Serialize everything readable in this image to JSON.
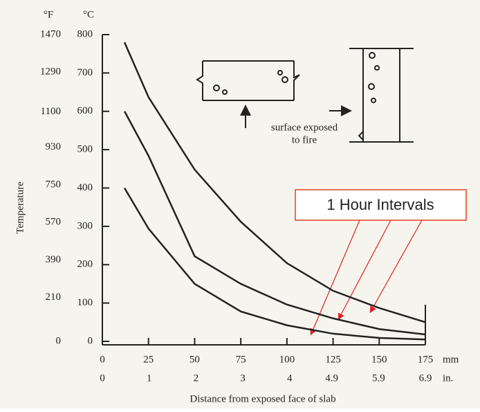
{
  "chart_data": {
    "type": "line",
    "y_label": "Temperature",
    "x_label": "Distance from exposed face of slab",
    "y_unit": "°C",
    "y2_unit": "°F",
    "x_unit": "mm",
    "x2_unit": "in.",
    "annotation": "1 Hour Intervals",
    "figure_text": [
      "surface exposed",
      "to fire"
    ],
    "x": [
      12,
      25,
      50,
      75,
      100,
      125,
      150,
      175
    ],
    "series": [
      {
        "color": "#222",
        "values": [
          780,
          637,
          448,
          312,
          204,
          132,
          87,
          50
        ]
      },
      {
        "color": "#222",
        "values": [
          600,
          484,
          222,
          150,
          96,
          60,
          32,
          18
        ]
      },
      {
        "color": "#222",
        "values": [
          400,
          294,
          150,
          78,
          42,
          20,
          9,
          5
        ]
      }
    ],
    "xlim": [
      0,
      175
    ],
    "xticks": [
      0,
      25,
      50,
      75,
      100,
      125,
      150,
      175
    ],
    "x2lim": [
      0,
      6.9
    ],
    "x2ticks": [
      0,
      1,
      2,
      3,
      4,
      4.9,
      5.9,
      6.9
    ],
    "ylim": [
      0,
      800
    ],
    "yticks": [
      0,
      100,
      200,
      300,
      400,
      500,
      600,
      700,
      800
    ],
    "y2lim": [
      0,
      1470
    ],
    "y2ticks": [
      0,
      210,
      390,
      570,
      750,
      930,
      1100,
      1290,
      1470
    ]
  }
}
